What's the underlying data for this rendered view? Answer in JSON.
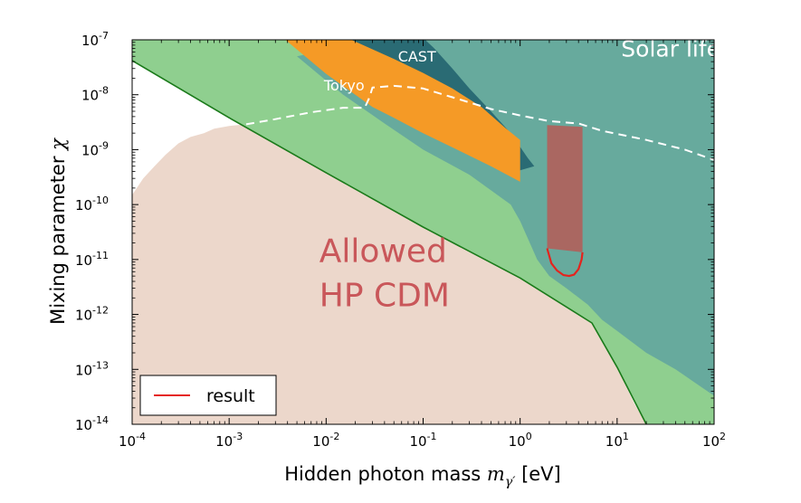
{
  "chart_data": {
    "type": "area",
    "title": "",
    "xlabel": "Hidden photon mass",
    "xlabel_symbol": "m",
    "xlabel_sub": "γ′",
    "xlabel_unit": "[eV]",
    "ylabel": "Mixing parameter",
    "ylabel_symbol": "χ",
    "x_scale": "log",
    "y_scale": "log",
    "xlim": [
      0.0001,
      100
    ],
    "ylim": [
      1e-14,
      1e-07
    ],
    "x_ticks": [
      {
        "base": "10",
        "exp": "-4",
        "value": 0.0001
      },
      {
        "base": "10",
        "exp": "-3",
        "value": 0.001
      },
      {
        "base": "10",
        "exp": "-2",
        "value": 0.01
      },
      {
        "base": "10",
        "exp": "-1",
        "value": 0.1
      },
      {
        "base": "10",
        "exp": "0",
        "value": 1
      },
      {
        "base": "10",
        "exp": "1",
        "value": 10
      },
      {
        "base": "10",
        "exp": "2",
        "value": 100
      }
    ],
    "y_ticks": [
      {
        "base": "10",
        "exp": "-7",
        "value": 1e-07
      },
      {
        "base": "10",
        "exp": "-8",
        "value": 1e-08
      },
      {
        "base": "10",
        "exp": "-9",
        "value": 1e-09
      },
      {
        "base": "10",
        "exp": "-10",
        "value": 1e-10
      },
      {
        "base": "10",
        "exp": "-11",
        "value": 1e-11
      },
      {
        "base": "10",
        "exp": "-12",
        "value": 1e-12
      },
      {
        "base": "10",
        "exp": "-13",
        "value": 1e-13
      },
      {
        "base": "10",
        "exp": "-14",
        "value": 1e-14
      }
    ],
    "regions": [
      {
        "id": "allowed",
        "color": "#ecd7cb",
        "points": [
          [
            0.0001,
            1e-14
          ],
          [
            0.0001,
            1.5e-10
          ],
          [
            0.00013,
            3e-10
          ],
          [
            0.00017,
            5e-10
          ],
          [
            0.00022,
            8e-10
          ],
          [
            0.0003,
            1.3e-09
          ],
          [
            0.0004,
            1.7e-09
          ],
          [
            0.00055,
            2e-09
          ],
          [
            0.0007,
            2.4e-09
          ],
          [
            0.001,
            2.7e-09
          ],
          [
            0.0015,
            2.9e-09
          ],
          [
            0.00222,
            2.7e-09
          ],
          [
            0.01,
            6.2e-10
          ],
          [
            0.1,
            6.8e-11
          ],
          [
            1,
            7.3e-12
          ],
          [
            2.5,
            3.1e-12
          ],
          [
            5.5,
            1.5e-12
          ],
          [
            10,
            1.1e-13
          ],
          [
            15,
            2.4e-14
          ],
          [
            20,
            1e-14
          ]
        ]
      },
      {
        "id": "green",
        "color": "#8fcf8f",
        "points": [
          [
            0.0001,
            1e-07
          ],
          [
            0.0001,
            4.2e-08
          ],
          [
            0.001,
            3.8e-09
          ],
          [
            0.01,
            3.8e-10
          ],
          [
            0.1,
            3.9e-11
          ],
          [
            1,
            4.6e-12
          ],
          [
            5.5,
            7e-13
          ],
          [
            10,
            1.1e-13
          ],
          [
            20,
            1e-14
          ],
          [
            100,
            1e-14
          ],
          [
            100,
            1e-07
          ]
        ]
      },
      {
        "id": "solar-lifetime",
        "color": "#67aa9d",
        "points": [
          [
            0.03,
            1e-07
          ],
          [
            100,
            1e-07
          ],
          [
            100,
            3.3e-14
          ],
          [
            40,
            1e-13
          ],
          [
            20,
            2e-13
          ],
          [
            10,
            5e-13
          ],
          [
            7,
            8e-13
          ],
          [
            5,
            1.5e-12
          ],
          [
            3,
            3e-12
          ],
          [
            2,
            5e-12
          ],
          [
            1.5,
            1e-11
          ],
          [
            1,
            5e-11
          ],
          [
            0.8,
            1e-10
          ],
          [
            0.3,
            3.5e-10
          ],
          [
            0.1,
            1e-09
          ],
          [
            0.04,
            3e-09
          ],
          [
            0.015,
            1e-08
          ],
          [
            0.005,
            5e-08
          ]
        ]
      },
      {
        "id": "cast",
        "color": "#2a6b74",
        "points": [
          [
            0.0182,
            1e-07
          ],
          [
            0.105,
            1e-07
          ],
          [
            0.13,
            7e-08
          ],
          [
            0.2,
            3e-08
          ],
          [
            0.3,
            1.3e-08
          ],
          [
            0.5,
            5e-09
          ],
          [
            0.8,
            2e-09
          ],
          [
            1.2,
            7e-10
          ],
          [
            1.4,
            5e-10
          ],
          [
            0.9,
            4e-10
          ],
          [
            0.5,
            1e-09
          ],
          [
            0.2,
            3e-09
          ],
          [
            0.08,
            1e-08
          ],
          [
            0.03,
            4e-08
          ]
        ]
      },
      {
        "id": "tokyo",
        "color": "#f59a26",
        "points": [
          [
            0.0038,
            1e-07
          ],
          [
            0.0182,
            1e-07
          ],
          [
            0.05,
            4.5e-08
          ],
          [
            0.1,
            2.5e-08
          ],
          [
            0.2,
            1.3e-08
          ],
          [
            0.4,
            6e-09
          ],
          [
            0.7,
            2.5e-09
          ],
          [
            1,
            1.5e-09
          ],
          [
            1,
            2.6e-10
          ],
          [
            0.5,
            5e-10
          ],
          [
            0.2,
            1.1e-09
          ],
          [
            0.1,
            2e-09
          ],
          [
            0.05,
            3.8e-09
          ],
          [
            0.03,
            6e-09
          ],
          [
            0.02,
            1e-08
          ],
          [
            0.01,
            2.4e-08
          ]
        ]
      },
      {
        "id": "result-band",
        "color": "#c0504d",
        "opacity": 0.75,
        "points": [
          [
            1.9,
            2.8e-09
          ],
          [
            4.4,
            2.6e-09
          ],
          [
            4.4,
            1.35e-11
          ],
          [
            1.9,
            1.6e-11
          ]
        ]
      }
    ],
    "lines": [
      {
        "id": "green-boundary",
        "color": "#1a7a1a",
        "width": 1.6,
        "points": [
          [
            0.0001,
            4.2e-08
          ],
          [
            0.001,
            3.8e-09
          ],
          [
            0.01,
            3.8e-10
          ],
          [
            0.1,
            3.9e-11
          ],
          [
            1,
            4.6e-12
          ],
          [
            5.5,
            7e-13
          ],
          [
            10,
            1.1e-13
          ],
          [
            20,
            1e-14
          ]
        ]
      },
      {
        "id": "white-dashed",
        "color": "#ffffff",
        "width": 2,
        "dash": "9,6",
        "points": [
          [
            0.0015,
            2.9e-09
          ],
          [
            0.003,
            3.6e-09
          ],
          [
            0.007,
            4.8e-09
          ],
          [
            0.015,
            5.8e-09
          ],
          [
            0.025,
            5.8e-09
          ],
          [
            0.028,
            9e-09
          ],
          [
            0.03,
            1.35e-08
          ],
          [
            0.05,
            1.45e-08
          ],
          [
            0.1,
            1.3e-08
          ],
          [
            0.2,
            9e-09
          ],
          [
            0.5,
            5.5e-09
          ],
          [
            1,
            4.2e-09
          ],
          [
            2,
            3.3e-09
          ],
          [
            4,
            3e-09
          ],
          [
            7,
            2.2e-09
          ],
          [
            20,
            1.5e-09
          ],
          [
            50,
            1e-09
          ],
          [
            100,
            6.5e-10
          ]
        ]
      },
      {
        "id": "result",
        "color": "#e5231d",
        "width": 2.2,
        "points": [
          [
            1.9,
            1.6e-11
          ],
          [
            2.1,
            8.5e-12
          ],
          [
            2.4,
            6.3e-12
          ],
          [
            2.8,
            5.2e-12
          ],
          [
            3.2,
            5e-12
          ],
          [
            3.6,
            5.3e-12
          ],
          [
            4,
            6.7e-12
          ],
          [
            4.3,
            1e-11
          ],
          [
            4.4,
            1.35e-11
          ]
        ]
      }
    ],
    "annotations": [
      {
        "id": "solar-lifetime-label",
        "text": "Solar lifetime",
        "x": 11,
        "y": 5e-08,
        "color": "#ffffff",
        "size": 25
      },
      {
        "id": "cast-label",
        "text": "CAST",
        "x": 0.055,
        "y": 4e-08,
        "color": "#ffffff",
        "size": 16
      },
      {
        "id": "tokyo-label",
        "text": "Tokyo",
        "x": 0.0095,
        "y": 1.2e-08,
        "color": "#ffffff",
        "size": 16
      },
      {
        "id": "allowed-label-line1",
        "text": "Allowed",
        "x": 0.0085,
        "y": 9e-12,
        "color": "#c9575a",
        "size": 36
      },
      {
        "id": "allowed-label-line2",
        "text": "HP CDM",
        "x": 0.0085,
        "y": 1.4e-12,
        "color": "#c9575a",
        "size": 36
      }
    ],
    "legend": {
      "position": "bottom-left",
      "entries": [
        {
          "label": "result",
          "color": "#e5231d"
        }
      ]
    }
  }
}
